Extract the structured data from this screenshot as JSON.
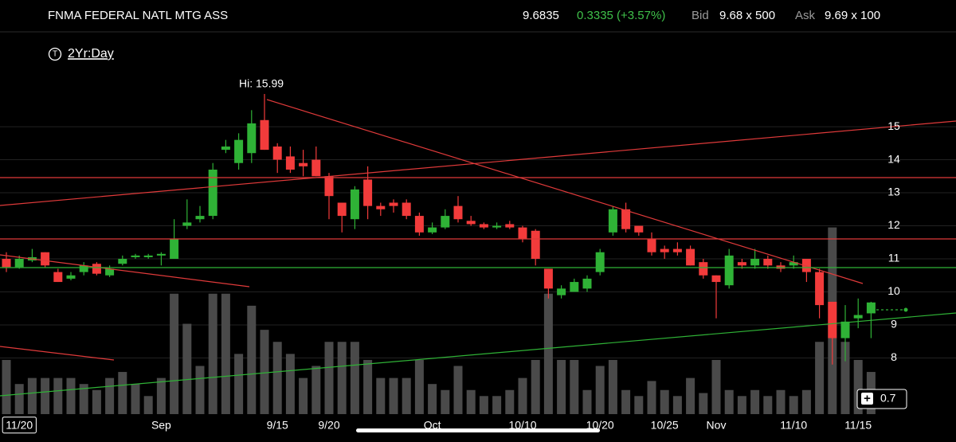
{
  "header": {
    "symbol": "FNMA FEDERAL NATL MTG ASS",
    "last": "9.6835",
    "change": "0.3335 (+3.57%)",
    "bid_label": "Bid",
    "bid": "9.68 x 500",
    "ask_label": "Ask",
    "ask": "9.69 x 100"
  },
  "chart_data": {
    "type": "candlestick",
    "range_label": "2Yr:Day",
    "hi_label": "Hi: 15.99",
    "categories": [
      null,
      "11/20",
      null,
      null,
      null,
      null,
      null,
      null,
      null,
      null,
      null,
      null,
      "Sep",
      null,
      null,
      null,
      null,
      null,
      null,
      null,
      null,
      "9/15",
      null,
      null,
      null,
      "9/20",
      null,
      null,
      null,
      null,
      null,
      null,
      null,
      "Oct",
      null,
      null,
      null,
      null,
      null,
      null,
      "10/10",
      null,
      null,
      null,
      null,
      null,
      "10/20",
      null,
      null,
      null,
      null,
      "10/25",
      null,
      null,
      null,
      "Nov",
      null,
      null,
      null,
      null,
      null,
      "11/10",
      null,
      null,
      null,
      null,
      "11/15",
      null
    ],
    "open": [
      11.0,
      10.75,
      10.95,
      11.2,
      10.6,
      10.4,
      10.6,
      10.85,
      10.5,
      10.85,
      11.05,
      11.05,
      11.1,
      11.0,
      12.0,
      12.2,
      12.3,
      14.3,
      13.9,
      14.2,
      15.2,
      14.4,
      14.1,
      13.9,
      14.0,
      13.5,
      12.7,
      12.2,
      13.4,
      12.6,
      12.7,
      12.7,
      12.3,
      11.8,
      11.95,
      12.6,
      12.15,
      12.05,
      11.95,
      12.05,
      11.95,
      11.85,
      10.7,
      9.9,
      10.0,
      10.1,
      10.6,
      11.8,
      12.5,
      12.0,
      11.6,
      11.3,
      11.3,
      11.3,
      10.9,
      10.5,
      10.2,
      10.9,
      10.8,
      11.0,
      10.8,
      10.8,
      11.0,
      10.6,
      9.7,
      8.6,
      9.2,
      9.35
    ],
    "high": [
      11.2,
      11.1,
      11.3,
      11.2,
      10.7,
      10.6,
      10.9,
      10.9,
      10.8,
      11.1,
      11.15,
      11.15,
      11.2,
      12.2,
      12.8,
      12.6,
      13.9,
      14.6,
      14.8,
      15.5,
      15.99,
      14.5,
      14.4,
      14.3,
      14.4,
      13.6,
      12.7,
      13.2,
      13.8,
      12.7,
      12.8,
      12.8,
      12.4,
      12.1,
      12.5,
      12.9,
      12.3,
      12.1,
      12.1,
      12.15,
      12.0,
      11.9,
      10.7,
      10.2,
      10.4,
      10.5,
      11.3,
      12.6,
      12.7,
      12.0,
      11.8,
      11.4,
      11.5,
      11.4,
      11.0,
      10.5,
      11.3,
      11.0,
      11.3,
      11.1,
      10.9,
      11.1,
      11.0,
      10.7,
      9.7,
      9.6,
      9.8,
      9.7
    ],
    "low": [
      10.6,
      10.7,
      10.9,
      10.75,
      10.3,
      10.35,
      10.5,
      10.5,
      10.45,
      10.8,
      11.0,
      11.0,
      10.8,
      11.0,
      11.9,
      12.1,
      12.2,
      14.2,
      13.7,
      13.9,
      14.3,
      13.6,
      13.6,
      13.5,
      13.5,
      12.2,
      11.8,
      11.9,
      12.2,
      12.3,
      12.4,
      12.2,
      11.7,
      11.75,
      11.9,
      12.1,
      12.0,
      11.9,
      11.9,
      11.9,
      11.5,
      10.8,
      9.8,
      9.8,
      10.0,
      10.0,
      10.5,
      11.7,
      11.8,
      11.7,
      11.1,
      11.0,
      11.1,
      10.8,
      10.4,
      9.2,
      10.1,
      10.7,
      10.7,
      10.7,
      10.6,
      10.7,
      10.3,
      9.2,
      7.8,
      7.9,
      8.9,
      8.6
    ],
    "close": [
      10.75,
      11.0,
      11.05,
      10.8,
      10.3,
      10.5,
      10.8,
      10.55,
      10.7,
      11.0,
      11.1,
      11.1,
      11.15,
      11.6,
      12.1,
      12.3,
      13.7,
      14.4,
      14.6,
      15.1,
      14.3,
      14.0,
      13.7,
      13.8,
      13.5,
      12.9,
      12.3,
      13.1,
      12.6,
      12.5,
      12.6,
      12.3,
      11.8,
      11.95,
      12.3,
      12.2,
      12.05,
      11.95,
      12.0,
      11.95,
      11.6,
      11.0,
      10.1,
      10.1,
      10.3,
      10.4,
      11.2,
      12.5,
      11.9,
      11.8,
      11.2,
      11.2,
      11.2,
      10.8,
      10.5,
      10.3,
      11.1,
      10.8,
      11.0,
      10.8,
      10.7,
      10.9,
      10.6,
      9.6,
      8.6,
      9.1,
      9.3,
      9.68
    ],
    "volumes": [
      0.9,
      0.5,
      0.6,
      0.6,
      0.6,
      0.6,
      0.5,
      0.4,
      0.6,
      0.7,
      0.5,
      0.3,
      0.6,
      2.0,
      1.5,
      0.8,
      2.0,
      2.0,
      1.0,
      1.8,
      1.4,
      1.2,
      1.0,
      0.6,
      0.8,
      1.2,
      1.2,
      1.2,
      0.9,
      0.6,
      0.6,
      0.6,
      0.9,
      0.5,
      0.4,
      0.8,
      0.4,
      0.3,
      0.3,
      0.4,
      0.6,
      0.9,
      2.0,
      0.9,
      0.9,
      0.4,
      0.8,
      0.9,
      0.4,
      0.3,
      0.55,
      0.4,
      0.3,
      0.6,
      0.35,
      0.9,
      0.4,
      0.3,
      0.4,
      0.3,
      0.4,
      0.3,
      0.4,
      1.2,
      3.1,
      1.2,
      0.9,
      0.7
    ],
    "up_color": "#2fb236",
    "down_color": "#f23b3b",
    "volume_color": "#4a4a4a",
    "ylim": [
      6.3,
      17.87
    ],
    "yticks": [
      8,
      9,
      10,
      11,
      12,
      13,
      14,
      15
    ],
    "vlim": [
      0,
      3.2
    ],
    "grid": true
  }
}
